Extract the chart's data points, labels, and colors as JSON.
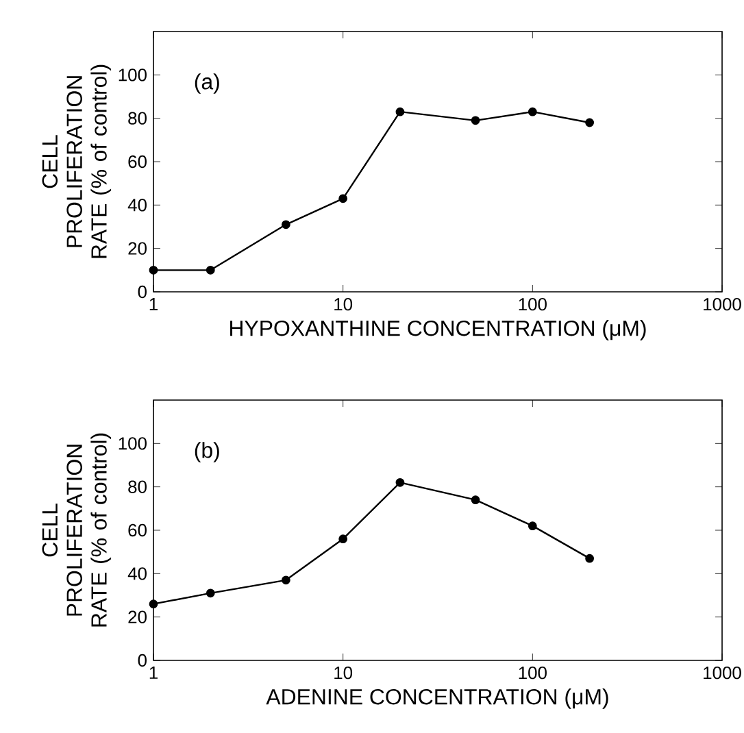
{
  "chart_data": [
    {
      "type": "line",
      "xlabel": "HYPOXANTHINE CONCENTRATION (μM)",
      "ylabel": "CELL PROLIFERATION RATE (% of control)",
      "annotations": [
        "(a)"
      ],
      "x": [
        1,
        2,
        5,
        10,
        20,
        50,
        100,
        200
      ],
      "values": [
        10,
        10,
        31,
        43,
        83,
        79,
        83,
        78
      ],
      "color": "#000000",
      "marker": "circle",
      "line_style": "solid",
      "log": "x",
      "xlim": [
        1,
        1000
      ],
      "xticks": [
        1,
        10,
        100,
        1000
      ],
      "ylim": [
        0,
        120
      ],
      "yticks": [
        0,
        20,
        40,
        60,
        80,
        100
      ]
    },
    {
      "type": "line",
      "xlabel": "ADENINE CONCENTRATION (μM)",
      "ylabel": "CELL PROLIFERATION RATE (% of control)",
      "annotations": [
        "(b)"
      ],
      "x": [
        1,
        2,
        5,
        10,
        20,
        50,
        100,
        200
      ],
      "values": [
        26,
        31,
        37,
        56,
        82,
        74,
        62,
        47
      ],
      "color": "#000000",
      "marker": "circle",
      "line_style": "solid",
      "log": "x",
      "xlim": [
        1,
        1000
      ],
      "xticks": [
        1,
        10,
        100,
        1000
      ],
      "ylim": [
        0,
        120
      ],
      "yticks": [
        0,
        20,
        40,
        60,
        80,
        100
      ]
    }
  ]
}
